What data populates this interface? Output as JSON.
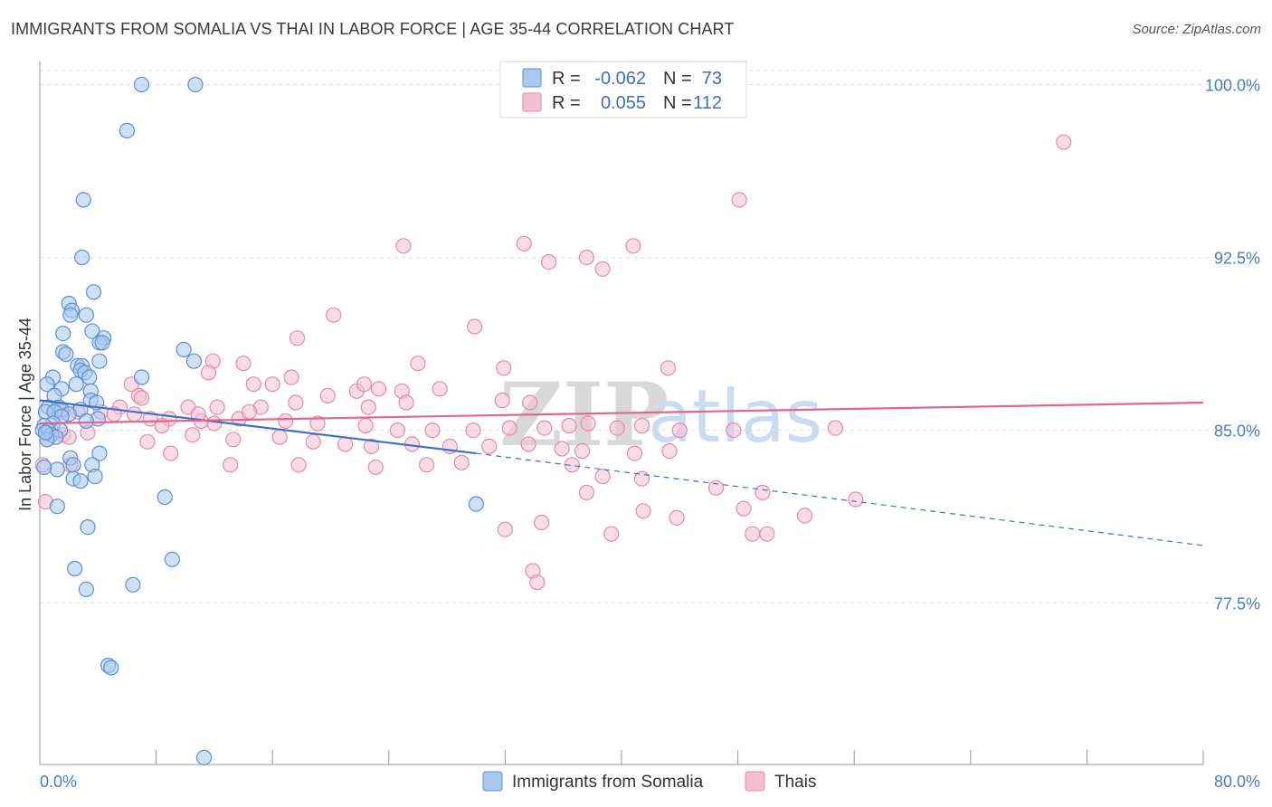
{
  "title": "IMMIGRANTS FROM SOMALIA VS THAI IN LABOR FORCE | AGE 35-44 CORRELATION CHART",
  "source": "Source: ZipAtlas.com",
  "watermark": {
    "zip": "ZIP",
    "atlas": "atlas"
  },
  "colors": {
    "somalia_fill": "#a8c8ee",
    "somalia_stroke": "#5b8fd6",
    "somalia_line": "#3b72c8",
    "thai_fill": "#f5bfd1",
    "thai_stroke": "#e58aab",
    "thai_line": "#e06690",
    "grid": "#dddddd",
    "tick_text": "#4a7cc4"
  },
  "legend": {
    "rows": [
      {
        "r_label": "R =",
        "r_value": "-0.062",
        "n_label": "N =",
        "n_value": "73"
      },
      {
        "r_label": "R =",
        "r_value": "0.055",
        "n_label": "N =",
        "n_value": "112"
      }
    ]
  },
  "chart_data": {
    "type": "scatter",
    "xlabel": "",
    "ylabel": "In Labor Force | Age 35-44",
    "xlim": [
      0,
      80
    ],
    "ylim": [
      70.5,
      101
    ],
    "x_tick_labels": [
      {
        "value": 0,
        "label": "0.0%"
      },
      {
        "value": 80,
        "label": "80.0%"
      }
    ],
    "x_minor_ticks": [
      0,
      8,
      16,
      24,
      32,
      40,
      48,
      56,
      64,
      72,
      80
    ],
    "y_ticks": [
      {
        "value": 100,
        "label": "100.0%"
      },
      {
        "value": 92.5,
        "label": "92.5%"
      },
      {
        "value": 85,
        "label": "85.0%"
      },
      {
        "value": 77.5,
        "label": "77.5%"
      }
    ],
    "series": [
      {
        "name": "Immigrants from Somalia",
        "points": [
          [
            7.0,
            100.0
          ],
          [
            10.7,
            100.0
          ],
          [
            6.0,
            98.0
          ],
          [
            3.0,
            95.0
          ],
          [
            2.9,
            92.5
          ],
          [
            3.7,
            91.0
          ],
          [
            2.0,
            90.5
          ],
          [
            2.2,
            90.2
          ],
          [
            2.1,
            90.0
          ],
          [
            3.2,
            90.0
          ],
          [
            1.6,
            89.2
          ],
          [
            3.6,
            89.3
          ],
          [
            4.4,
            89.0
          ],
          [
            4.1,
            88.8
          ],
          [
            4.3,
            88.8
          ],
          [
            9.9,
            88.5
          ],
          [
            1.6,
            88.4
          ],
          [
            1.8,
            88.3
          ],
          [
            4.1,
            88.0
          ],
          [
            10.6,
            88.0
          ],
          [
            2.6,
            87.8
          ],
          [
            2.9,
            87.8
          ],
          [
            2.8,
            87.6
          ],
          [
            3.1,
            87.5
          ],
          [
            3.4,
            87.3
          ],
          [
            7.0,
            87.3
          ],
          [
            0.9,
            87.3
          ],
          [
            0.5,
            87.0
          ],
          [
            2.5,
            87.0
          ],
          [
            1.5,
            86.8
          ],
          [
            3.5,
            86.7
          ],
          [
            1.0,
            86.5
          ],
          [
            3.5,
            86.3
          ],
          [
            3.9,
            86.2
          ],
          [
            0.6,
            86.0
          ],
          [
            1.3,
            86.0
          ],
          [
            1.5,
            85.9
          ],
          [
            2.8,
            85.9
          ],
          [
            0.4,
            85.8
          ],
          [
            1.0,
            85.8
          ],
          [
            2.0,
            85.7
          ],
          [
            1.5,
            85.6
          ],
          [
            4.0,
            85.5
          ],
          [
            3.2,
            85.4
          ],
          [
            0.9,
            85.3
          ],
          [
            0.3,
            85.2
          ],
          [
            0.2,
            85.0
          ],
          [
            0.6,
            85.0
          ],
          [
            1.4,
            85.0
          ],
          [
            0.8,
            84.8
          ],
          [
            1.1,
            84.7
          ],
          [
            0.5,
            84.6
          ],
          [
            4.1,
            84.0
          ],
          [
            2.1,
            83.8
          ],
          [
            2.3,
            83.5
          ],
          [
            3.6,
            83.5
          ],
          [
            1.2,
            83.3
          ],
          [
            3.8,
            83.0
          ],
          [
            2.3,
            82.9
          ],
          [
            2.8,
            82.8
          ],
          [
            0.3,
            83.4
          ],
          [
            8.6,
            82.1
          ],
          [
            30.0,
            81.8
          ],
          [
            1.2,
            81.7
          ],
          [
            3.3,
            80.8
          ],
          [
            9.1,
            79.4
          ],
          [
            2.4,
            79.0
          ],
          [
            3.2,
            78.1
          ],
          [
            6.4,
            78.3
          ],
          [
            4.7,
            74.8
          ],
          [
            4.9,
            74.7
          ],
          [
            11.3,
            70.8
          ],
          [
            0.4,
            84.9
          ]
        ]
      },
      {
        "name": "Thais",
        "points": [
          [
            70.4,
            97.5
          ],
          [
            48.1,
            95.0
          ],
          [
            25.0,
            93.0
          ],
          [
            33.3,
            93.1
          ],
          [
            37.6,
            92.5
          ],
          [
            40.8,
            93.0
          ],
          [
            35.0,
            92.3
          ],
          [
            20.2,
            90.0
          ],
          [
            38.7,
            92.0
          ],
          [
            29.9,
            89.5
          ],
          [
            17.7,
            89.0
          ],
          [
            11.9,
            88.0
          ],
          [
            14.0,
            87.9
          ],
          [
            26.0,
            87.9
          ],
          [
            31.9,
            87.7
          ],
          [
            43.2,
            87.7
          ],
          [
            11.6,
            87.5
          ],
          [
            17.3,
            87.3
          ],
          [
            6.3,
            87.0
          ],
          [
            14.7,
            87.0
          ],
          [
            16.0,
            87.0
          ],
          [
            23.3,
            86.8
          ],
          [
            24.9,
            86.7
          ],
          [
            27.5,
            86.8
          ],
          [
            6.8,
            86.5
          ],
          [
            7.0,
            86.4
          ],
          [
            17.6,
            86.2
          ],
          [
            33.7,
            86.2
          ],
          [
            31.8,
            86.3
          ],
          [
            25.2,
            86.2
          ],
          [
            22.6,
            86.0
          ],
          [
            12.2,
            86.0
          ],
          [
            15.2,
            86.0
          ],
          [
            10.2,
            86.0
          ],
          [
            5.5,
            86.0
          ],
          [
            1.5,
            85.8
          ],
          [
            2.6,
            85.8
          ],
          [
            4.2,
            85.8
          ],
          [
            5.1,
            85.7
          ],
          [
            6.5,
            85.7
          ],
          [
            7.6,
            85.5
          ],
          [
            8.9,
            85.5
          ],
          [
            11.1,
            85.4
          ],
          [
            13.7,
            85.5
          ],
          [
            16.9,
            85.4
          ],
          [
            19.1,
            85.3
          ],
          [
            22.4,
            85.2
          ],
          [
            24.6,
            85.0
          ],
          [
            27.0,
            85.0
          ],
          [
            29.8,
            85.0
          ],
          [
            32.3,
            85.1
          ],
          [
            34.7,
            85.1
          ],
          [
            36.4,
            85.2
          ],
          [
            37.7,
            85.3
          ],
          [
            39.7,
            85.1
          ],
          [
            41.4,
            85.2
          ],
          [
            44.0,
            85.0
          ],
          [
            47.7,
            85.0
          ],
          [
            54.7,
            85.1
          ],
          [
            3.3,
            84.9
          ],
          [
            1.6,
            84.8
          ],
          [
            2.0,
            84.7
          ],
          [
            0.5,
            84.6
          ],
          [
            7.4,
            84.5
          ],
          [
            10.5,
            84.8
          ],
          [
            13.3,
            84.6
          ],
          [
            16.5,
            84.7
          ],
          [
            18.8,
            84.5
          ],
          [
            21.0,
            84.4
          ],
          [
            22.8,
            84.3
          ],
          [
            25.6,
            84.4
          ],
          [
            28.2,
            84.3
          ],
          [
            30.9,
            84.3
          ],
          [
            33.6,
            84.4
          ],
          [
            35.9,
            84.2
          ],
          [
            37.3,
            84.1
          ],
          [
            40.9,
            84.0
          ],
          [
            43.3,
            84.1
          ],
          [
            2.1,
            83.5
          ],
          [
            9.0,
            84.0
          ],
          [
            13.1,
            83.5
          ],
          [
            17.8,
            83.5
          ],
          [
            23.1,
            83.4
          ],
          [
            26.6,
            83.5
          ],
          [
            29.0,
            83.6
          ],
          [
            36.6,
            83.5
          ],
          [
            38.7,
            83.0
          ],
          [
            41.4,
            82.9
          ],
          [
            46.5,
            82.5
          ],
          [
            49.7,
            82.3
          ],
          [
            56.1,
            82.0
          ],
          [
            8.4,
            85.2
          ],
          [
            10.9,
            85.7
          ],
          [
            12.0,
            85.3
          ],
          [
            14.4,
            85.8
          ],
          [
            19.8,
            86.5
          ],
          [
            21.8,
            86.7
          ],
          [
            22.3,
            87.0
          ],
          [
            37.6,
            82.3
          ],
          [
            41.5,
            81.5
          ],
          [
            43.8,
            81.2
          ],
          [
            48.4,
            81.6
          ],
          [
            49.0,
            80.5
          ],
          [
            32.0,
            80.7
          ],
          [
            34.5,
            81.0
          ],
          [
            39.3,
            80.5
          ],
          [
            52.6,
            81.3
          ],
          [
            50.0,
            80.5
          ],
          [
            33.9,
            78.9
          ],
          [
            34.2,
            78.4
          ],
          [
            0.2,
            83.5
          ],
          [
            0.4,
            81.9
          ]
        ]
      }
    ],
    "trend_lines": [
      {
        "series": "Immigrants from Somalia",
        "x_start": 0,
        "y_start": 86.3,
        "x_solid_end": 30.0,
        "y_solid_end": 84.0,
        "x_end": 80,
        "y_end": 80.0
      },
      {
        "series": "Thais",
        "x_start": 0,
        "y_start": 85.3,
        "x_end": 80,
        "y_end": 86.2
      }
    ]
  }
}
